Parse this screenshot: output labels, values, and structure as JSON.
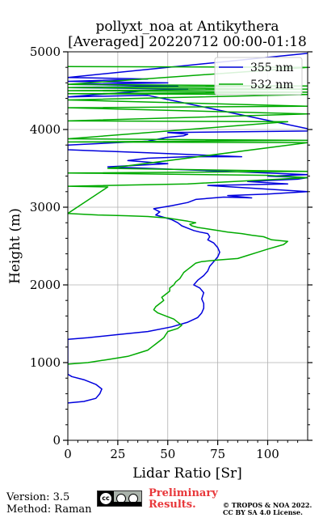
{
  "chart_data": {
    "type": "line",
    "title": "pollyxt_noa at Antikythera",
    "subtitle": "[Averaged] 20220712 00:00-01:18",
    "xlabel": "Lidar Ratio [Sr]",
    "ylabel": "Height (m)",
    "xlim": [
      0,
      120
    ],
    "ylim": [
      0,
      5000
    ],
    "xticks": [
      0,
      25,
      50,
      75,
      100
    ],
    "yticks": [
      0,
      1000,
      2000,
      3000,
      4000,
      5000
    ],
    "grid": true,
    "legend_position": "top-right",
    "series": [
      {
        "name": "355 nm",
        "color": "#0000dd",
        "points": [
          [
            0,
            480
          ],
          [
            8,
            500
          ],
          [
            14,
            540
          ],
          [
            16,
            600
          ],
          [
            17,
            660
          ],
          [
            14,
            720
          ],
          [
            8,
            780
          ],
          [
            2,
            820
          ],
          [
            0,
            850
          ],
          [
            0,
            1300
          ],
          [
            10,
            1320
          ],
          [
            25,
            1360
          ],
          [
            40,
            1400
          ],
          [
            52,
            1460
          ],
          [
            60,
            1520
          ],
          [
            65,
            1580
          ],
          [
            67,
            1640
          ],
          [
            68,
            1700
          ],
          [
            68,
            1760
          ],
          [
            67,
            1820
          ],
          [
            68,
            1900
          ],
          [
            66,
            1960
          ],
          [
            63,
            2000
          ],
          [
            65,
            2060
          ],
          [
            68,
            2120
          ],
          [
            70,
            2180
          ],
          [
            71,
            2240
          ],
          [
            73,
            2300
          ],
          [
            75,
            2360
          ],
          [
            76,
            2420
          ],
          [
            75,
            2480
          ],
          [
            73,
            2540
          ],
          [
            70,
            2580
          ],
          [
            71,
            2620
          ],
          [
            70,
            2660
          ],
          [
            66,
            2680
          ],
          [
            63,
            2700
          ],
          [
            60,
            2730
          ],
          [
            57,
            2760
          ],
          [
            55,
            2800
          ],
          [
            52,
            2840
          ],
          [
            48,
            2870
          ],
          [
            44,
            2900
          ],
          [
            46,
            2940
          ],
          [
            43,
            2980
          ],
          [
            52,
            3020
          ],
          [
            60,
            3060
          ],
          [
            64,
            3100
          ],
          [
            78,
            3130
          ],
          [
            92,
            3120
          ],
          [
            80,
            3150
          ],
          [
            100,
            3170
          ],
          [
            120,
            3200
          ],
          [
            70,
            3280
          ],
          [
            110,
            3300
          ],
          [
            90,
            3330
          ],
          [
            115,
            3360
          ],
          [
            120,
            3380
          ],
          [
            100,
            3400
          ],
          [
            120,
            3420
          ],
          [
            90,
            3450
          ],
          [
            40,
            3500
          ],
          [
            20,
            3520
          ],
          [
            50,
            3560
          ],
          [
            30,
            3600
          ],
          [
            40,
            3630
          ],
          [
            60,
            3650
          ],
          [
            87,
            3650
          ],
          [
            40,
            3700
          ],
          [
            20,
            3720
          ],
          [
            0,
            3740
          ],
          [
            0,
            3800
          ],
          [
            40,
            3850
          ],
          [
            50,
            3900
          ],
          [
            58,
            3920
          ],
          [
            60,
            3940
          ],
          [
            50,
            3960
          ],
          [
            120,
            3980
          ],
          [
            120,
            4010
          ],
          [
            40,
            4440
          ],
          [
            0,
            4420
          ],
          [
            40,
            4500
          ],
          [
            60,
            4520
          ],
          [
            0,
            4540
          ],
          [
            55,
            4560
          ],
          [
            0,
            4580
          ],
          [
            50,
            4600
          ],
          [
            0,
            4620
          ],
          [
            40,
            4650
          ],
          [
            0,
            4670
          ],
          [
            120,
            4980
          ]
        ]
      },
      {
        "name": "532 nm",
        "color": "#00aa00",
        "points": [
          [
            0,
            980
          ],
          [
            10,
            1000
          ],
          [
            20,
            1040
          ],
          [
            30,
            1080
          ],
          [
            35,
            1120
          ],
          [
            40,
            1160
          ],
          [
            42,
            1200
          ],
          [
            44,
            1240
          ],
          [
            46,
            1280
          ],
          [
            48,
            1320
          ],
          [
            49,
            1360
          ],
          [
            50,
            1400
          ],
          [
            55,
            1440
          ],
          [
            57,
            1480
          ],
          [
            55,
            1520
          ],
          [
            53,
            1560
          ],
          [
            49,
            1600
          ],
          [
            45,
            1640
          ],
          [
            43,
            1680
          ],
          [
            44,
            1720
          ],
          [
            46,
            1760
          ],
          [
            48,
            1800
          ],
          [
            47,
            1840
          ],
          [
            49,
            1880
          ],
          [
            51,
            1920
          ],
          [
            51,
            1960
          ],
          [
            53,
            2000
          ],
          [
            54,
            2040
          ],
          [
            56,
            2080
          ],
          [
            57,
            2120
          ],
          [
            58,
            2160
          ],
          [
            60,
            2200
          ],
          [
            62,
            2240
          ],
          [
            64,
            2280
          ],
          [
            67,
            2300
          ],
          [
            75,
            2320
          ],
          [
            85,
            2340
          ],
          [
            90,
            2380
          ],
          [
            95,
            2420
          ],
          [
            100,
            2460
          ],
          [
            108,
            2520
          ],
          [
            110,
            2560
          ],
          [
            102,
            2580
          ],
          [
            98,
            2620
          ],
          [
            92,
            2640
          ],
          [
            87,
            2660
          ],
          [
            80,
            2680
          ],
          [
            75,
            2700
          ],
          [
            70,
            2720
          ],
          [
            65,
            2740
          ],
          [
            62,
            2760
          ],
          [
            61,
            2780
          ],
          [
            64,
            2800
          ],
          [
            60,
            2820
          ],
          [
            55,
            2840
          ],
          [
            50,
            2860
          ],
          [
            40,
            2880
          ],
          [
            30,
            2890
          ],
          [
            15,
            2900
          ],
          [
            0,
            2920
          ],
          [
            20,
            3260
          ],
          [
            0,
            3270
          ],
          [
            60,
            3300
          ],
          [
            120,
            3380
          ],
          [
            100,
            3410
          ],
          [
            0,
            3440
          ],
          [
            120,
            3460
          ],
          [
            20,
            3500
          ],
          [
            120,
            3830
          ],
          [
            0,
            3840
          ],
          [
            120,
            3860
          ],
          [
            0,
            3880
          ],
          [
            110,
            4100
          ],
          [
            0,
            4110
          ],
          [
            120,
            4200
          ],
          [
            0,
            4280
          ],
          [
            120,
            4300
          ],
          [
            0,
            4380
          ],
          [
            120,
            4450
          ],
          [
            0,
            4460
          ],
          [
            120,
            4480
          ],
          [
            0,
            4500
          ],
          [
            120,
            4520
          ],
          [
            0,
            4540
          ],
          [
            120,
            4560
          ],
          [
            0,
            4580
          ],
          [
            120,
            4800
          ],
          [
            0,
            4810
          ]
        ]
      }
    ]
  },
  "footer": {
    "version": "Version: 3.5",
    "method": "Method: Raman",
    "license_badge": "CC BY SA",
    "preliminary_line1": "Preliminary",
    "preliminary_line2": "Results.",
    "copyright_line1": "© TROPOS & NOA 2022.",
    "copyright_line2": "CC BY SA 4.0 License."
  }
}
